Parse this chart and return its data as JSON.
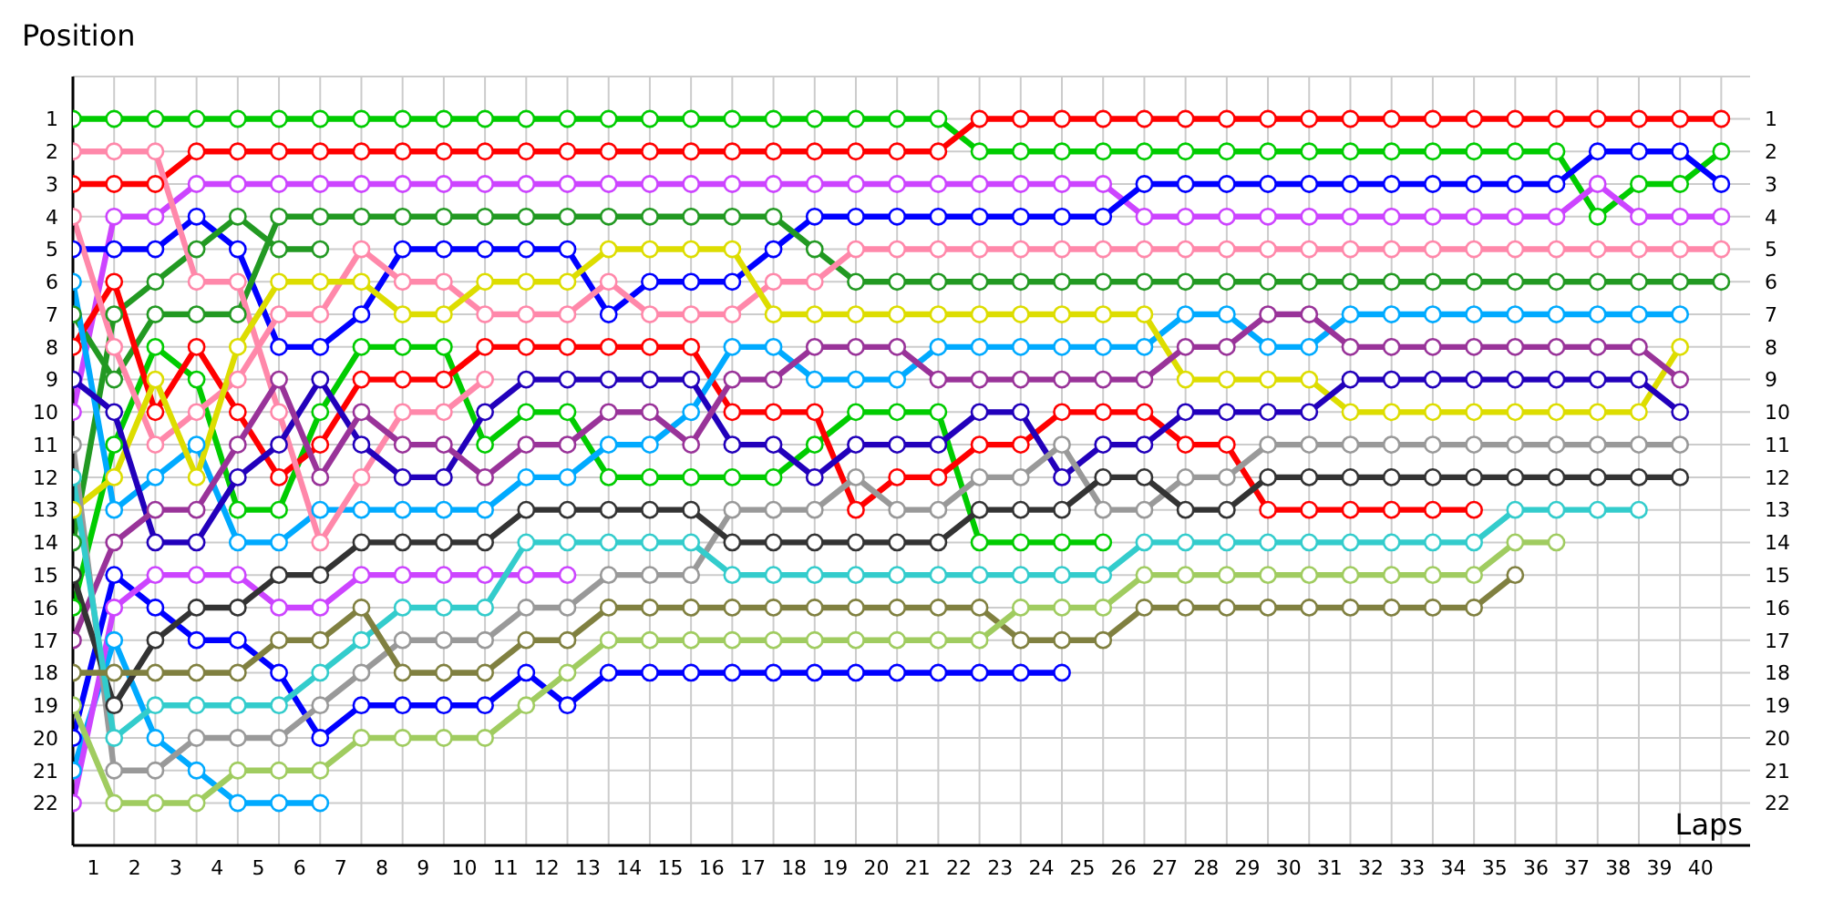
{
  "chart_data": {
    "type": "line",
    "xlabel": "Laps",
    "ylabel": "Position",
    "grid": true,
    "marker": "circle",
    "line_style": "solid",
    "x": [
      0,
      1,
      2,
      3,
      4,
      5,
      6,
      7,
      8,
      9,
      10,
      11,
      12,
      13,
      14,
      15,
      16,
      17,
      18,
      19,
      20,
      21,
      22,
      23,
      24,
      25,
      26,
      27,
      28,
      29,
      30,
      31,
      32,
      33,
      34,
      35,
      36,
      37,
      38,
      39,
      40
    ],
    "xlim": [
      0,
      40.7
    ],
    "xticks": [
      {
        "value": 0.5,
        "label": "1"
      },
      {
        "value": 1.5,
        "label": "2"
      },
      {
        "value": 2.5,
        "label": "3"
      },
      {
        "value": 3.5,
        "label": "4"
      },
      {
        "value": 4.5,
        "label": "5"
      },
      {
        "value": 5.5,
        "label": "6"
      },
      {
        "value": 6.5,
        "label": "7"
      },
      {
        "value": 7.5,
        "label": "8"
      },
      {
        "value": 8.5,
        "label": "9"
      },
      {
        "value": 9.5,
        "label": "10"
      },
      {
        "value": 10.5,
        "label": "11"
      },
      {
        "value": 11.5,
        "label": "12"
      },
      {
        "value": 12.5,
        "label": "13"
      },
      {
        "value": 13.5,
        "label": "14"
      },
      {
        "value": 14.5,
        "label": "15"
      },
      {
        "value": 15.5,
        "label": "16"
      },
      {
        "value": 16.5,
        "label": "17"
      },
      {
        "value": 17.5,
        "label": "18"
      },
      {
        "value": 18.5,
        "label": "19"
      },
      {
        "value": 19.5,
        "label": "20"
      },
      {
        "value": 20.5,
        "label": "21"
      },
      {
        "value": 21.5,
        "label": "22"
      },
      {
        "value": 22.5,
        "label": "23"
      },
      {
        "value": 23.5,
        "label": "24"
      },
      {
        "value": 24.5,
        "label": "25"
      },
      {
        "value": 25.5,
        "label": "26"
      },
      {
        "value": 26.5,
        "label": "27"
      },
      {
        "value": 27.5,
        "label": "28"
      },
      {
        "value": 28.5,
        "label": "29"
      },
      {
        "value": 29.5,
        "label": "30"
      },
      {
        "value": 30.5,
        "label": "31"
      },
      {
        "value": 31.5,
        "label": "32"
      },
      {
        "value": 32.5,
        "label": "33"
      },
      {
        "value": 33.5,
        "label": "34"
      },
      {
        "value": 34.5,
        "label": "35"
      },
      {
        "value": 35.5,
        "label": "36"
      },
      {
        "value": 36.5,
        "label": "37"
      },
      {
        "value": 37.5,
        "label": "38"
      },
      {
        "value": 38.5,
        "label": "39"
      },
      {
        "value": 39.5,
        "label": "40"
      }
    ],
    "ylim": [
      23.3,
      -0.3
    ],
    "yticks": [
      1,
      2,
      3,
      4,
      5,
      6,
      7,
      8,
      9,
      10,
      11,
      12,
      13,
      14,
      15,
      16,
      17,
      18,
      19,
      20,
      21,
      22
    ],
    "y2lim": [
      23.3,
      -0.3
    ],
    "y2ticks": [
      1,
      2,
      3,
      4,
      5,
      6,
      7,
      8,
      9,
      10,
      11,
      12,
      13,
      14,
      15,
      16,
      17,
      18,
      19,
      20,
      21,
      22
    ],
    "series": [
      {
        "color": "#00cc00",
        "values": [
          1,
          1,
          1,
          1,
          1,
          1,
          1,
          1,
          1,
          1,
          1,
          1,
          1,
          1,
          1,
          1,
          1,
          1,
          1,
          1,
          1,
          1,
          2,
          2,
          2,
          2,
          2,
          2,
          2,
          2,
          2,
          2,
          2,
          2,
          2,
          2,
          2,
          4,
          3,
          3,
          2
        ]
      },
      {
        "color": "#ff0000",
        "values": [
          3,
          3,
          3,
          2,
          2,
          2,
          2,
          2,
          2,
          2,
          2,
          2,
          2,
          2,
          2,
          2,
          2,
          2,
          2,
          2,
          2,
          2,
          1,
          1,
          1,
          1,
          1,
          1,
          1,
          1,
          1,
          1,
          1,
          1,
          1,
          1,
          1,
          1,
          1,
          1,
          1
        ]
      },
      {
        "color": "#cc44ff",
        "values": [
          10,
          4,
          4,
          3,
          3,
          3,
          3,
          3,
          3,
          3,
          3,
          3,
          3,
          3,
          3,
          3,
          3,
          3,
          3,
          3,
          3,
          3,
          3,
          3,
          3,
          3,
          4,
          4,
          4,
          4,
          4,
          4,
          4,
          4,
          4,
          4,
          4,
          3,
          4,
          4,
          4
        ]
      },
      {
        "color": "#0000ff",
        "values": [
          5,
          5,
          5,
          4,
          5,
          8,
          8,
          7,
          5,
          5,
          5,
          5,
          5,
          7,
          6,
          6,
          6,
          5,
          4,
          4,
          4,
          4,
          4,
          4,
          4,
          4,
          3,
          3,
          3,
          3,
          3,
          3,
          3,
          3,
          3,
          3,
          3,
          2,
          2,
          2,
          3
        ]
      },
      {
        "color": "#229922",
        "values": [
          7,
          9,
          7,
          7,
          7,
          4,
          4,
          4,
          4,
          4,
          4,
          4,
          4,
          4,
          4,
          4,
          4,
          4,
          5,
          6,
          6,
          6,
          6,
          6,
          6,
          6,
          6,
          6,
          6,
          6,
          6,
          6,
          6,
          6,
          6,
          6,
          6,
          6,
          6,
          6,
          6
        ]
      },
      {
        "color": "#229922",
        "values": [
          14,
          7,
          6,
          5,
          4,
          5,
          5,
          null,
          null,
          null,
          null,
          null,
          null,
          null,
          null,
          null,
          null,
          null,
          null,
          null,
          null,
          null,
          null,
          null,
          null,
          null,
          null,
          null,
          null,
          null,
          null,
          null,
          null,
          null,
          null,
          null,
          null,
          null,
          null,
          null,
          null
        ]
      },
      {
        "color": "#00cc00",
        "values": [
          16,
          11,
          8,
          9,
          13,
          13,
          10,
          8,
          8,
          8,
          11,
          10,
          10,
          12,
          12,
          12,
          12,
          12,
          11,
          10,
          10,
          10,
          14,
          14,
          14,
          14,
          null,
          null,
          null,
          null,
          null,
          null,
          null,
          null,
          null,
          null,
          null,
          null,
          null,
          null,
          null
        ]
      },
      {
        "color": "#ff0000",
        "values": [
          8,
          6,
          10,
          8,
          10,
          12,
          11,
          9,
          9,
          9,
          8,
          8,
          8,
          8,
          8,
          8,
          10,
          10,
          10,
          13,
          12,
          12,
          11,
          11,
          10,
          10,
          10,
          11,
          11,
          13,
          13,
          13,
          13,
          13,
          13,
          null,
          null,
          null,
          null,
          null,
          null
        ]
      },
      {
        "color": "#0000ff",
        "values": [
          20,
          15,
          16,
          17,
          17,
          18,
          20,
          19,
          19,
          19,
          19,
          18,
          19,
          18,
          18,
          18,
          18,
          18,
          18,
          18,
          18,
          18,
          18,
          18,
          18,
          null,
          null,
          null,
          null,
          null,
          null,
          null,
          null,
          null,
          null,
          null,
          null,
          null,
          null,
          null,
          null
        ]
      },
      {
        "color": "#00aaff",
        "values": [
          6,
          13,
          12,
          11,
          14,
          14,
          13,
          13,
          13,
          13,
          13,
          12,
          12,
          11,
          11,
          10,
          8,
          8,
          9,
          9,
          9,
          8,
          8,
          8,
          8,
          8,
          8,
          7,
          7,
          8,
          8,
          7,
          7,
          7,
          7,
          7,
          7,
          7,
          7,
          7,
          null
        ]
      },
      {
        "color": "#00aaff",
        "values": [
          21,
          17,
          20,
          21,
          22,
          22,
          22,
          null,
          null,
          null,
          null,
          null,
          null,
          null,
          null,
          null,
          null,
          null,
          null,
          null,
          null,
          null,
          null,
          null,
          null,
          null,
          null,
          null,
          null,
          null,
          null,
          null,
          null,
          null,
          null,
          null,
          null,
          null,
          null,
          null,
          null
        ]
      },
      {
        "color": "#cc44ff",
        "values": [
          22,
          16,
          15,
          15,
          15,
          16,
          16,
          15,
          15,
          15,
          15,
          15,
          15,
          null,
          null,
          null,
          null,
          null,
          null,
          null,
          null,
          null,
          null,
          null,
          null,
          null,
          null,
          null,
          null,
          null,
          null,
          null,
          null,
          null,
          null,
          null,
          null,
          null,
          null,
          null,
          null
        ]
      },
      {
        "color": "#ff88aa",
        "values": [
          4,
          8,
          11,
          10,
          9,
          7,
          7,
          5,
          6,
          6,
          7,
          7,
          7,
          6,
          7,
          7,
          7,
          6,
          6,
          5,
          5,
          5,
          5,
          5,
          5,
          5,
          5,
          5,
          5,
          5,
          5,
          5,
          5,
          5,
          5,
          5,
          5,
          5,
          5,
          5,
          5
        ]
      },
      {
        "color": "#ff88aa",
        "values": [
          2,
          2,
          2,
          6,
          6,
          10,
          14,
          12,
          10,
          10,
          9,
          null,
          null,
          null,
          null,
          null,
          null,
          null,
          null,
          null,
          null,
          null,
          null,
          null,
          null,
          null,
          null,
          null,
          null,
          null,
          null,
          null,
          null,
          null,
          null,
          null,
          null,
          null,
          null,
          null,
          null
        ]
      },
      {
        "color": "#dddd00",
        "values": [
          13,
          12,
          9,
          12,
          8,
          6,
          6,
          6,
          7,
          7,
          6,
          6,
          6,
          5,
          5,
          5,
          5,
          7,
          7,
          7,
          7,
          7,
          7,
          7,
          7,
          7,
          7,
          9,
          9,
          9,
          9,
          10,
          10,
          10,
          10,
          10,
          10,
          10,
          10,
          8,
          null
        ]
      },
      {
        "color": "#2200bb",
        "values": [
          9,
          10,
          14,
          14,
          12,
          11,
          9,
          11,
          12,
          12,
          10,
          9,
          9,
          9,
          9,
          9,
          11,
          11,
          12,
          11,
          11,
          11,
          10,
          10,
          12,
          11,
          11,
          10,
          10,
          10,
          10,
          9,
          9,
          9,
          9,
          9,
          9,
          9,
          9,
          10,
          null
        ]
      },
      {
        "color": "#993399",
        "values": [
          17,
          14,
          13,
          13,
          11,
          9,
          12,
          10,
          11,
          11,
          12,
          11,
          11,
          10,
          10,
          11,
          9,
          9,
          8,
          8,
          8,
          9,
          9,
          9,
          9,
          9,
          9,
          8,
          8,
          7,
          7,
          8,
          8,
          8,
          8,
          8,
          8,
          8,
          8,
          9,
          null
        ]
      },
      {
        "color": "#999999",
        "values": [
          11,
          21,
          21,
          20,
          20,
          20,
          19,
          18,
          17,
          17,
          17,
          16,
          16,
          15,
          15,
          15,
          13,
          13,
          13,
          12,
          13,
          13,
          12,
          12,
          11,
          13,
          13,
          12,
          12,
          11,
          11,
          11,
          11,
          11,
          11,
          11,
          11,
          11,
          11,
          11,
          null
        ]
      },
      {
        "color": "#333333",
        "values": [
          15,
          19,
          17,
          16,
          16,
          15,
          15,
          14,
          14,
          14,
          14,
          13,
          13,
          13,
          13,
          13,
          14,
          14,
          14,
          14,
          14,
          14,
          13,
          13,
          13,
          12,
          12,
          13,
          13,
          12,
          12,
          12,
          12,
          12,
          12,
          12,
          12,
          12,
          12,
          12,
          null
        ]
      },
      {
        "color": "#33cccc",
        "values": [
          12,
          20,
          19,
          19,
          19,
          19,
          18,
          17,
          16,
          16,
          16,
          14,
          14,
          14,
          14,
          14,
          15,
          15,
          15,
          15,
          15,
          15,
          15,
          15,
          15,
          15,
          14,
          14,
          14,
          14,
          14,
          14,
          14,
          14,
          14,
          13,
          13,
          13,
          13,
          null,
          null
        ]
      },
      {
        "color": "#808040",
        "values": [
          18,
          18,
          18,
          18,
          18,
          17,
          17,
          16,
          18,
          18,
          18,
          17,
          17,
          16,
          16,
          16,
          16,
          16,
          16,
          16,
          16,
          16,
          16,
          17,
          17,
          17,
          16,
          16,
          16,
          16,
          16,
          16,
          16,
          16,
          16,
          15,
          null,
          null,
          null,
          null,
          null
        ]
      },
      {
        "color": "#a0cc60",
        "values": [
          19,
          22,
          22,
          22,
          21,
          21,
          21,
          20,
          20,
          20,
          20,
          19,
          18,
          17,
          17,
          17,
          17,
          17,
          17,
          17,
          17,
          17,
          17,
          16,
          16,
          16,
          15,
          15,
          15,
          15,
          15,
          15,
          15,
          15,
          15,
          14,
          14,
          null,
          null,
          null,
          null
        ]
      }
    ]
  }
}
